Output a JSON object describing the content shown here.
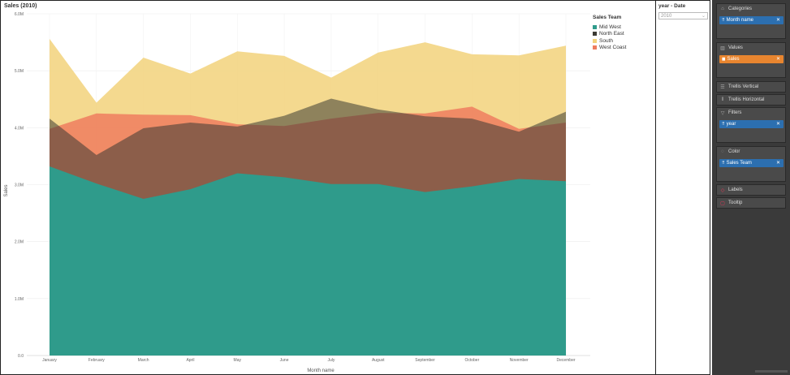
{
  "chart_title": "Sales (2010)",
  "chart_data": {
    "type": "area",
    "categories": [
      "January",
      "February",
      "March",
      "April",
      "May",
      "June",
      "July",
      "August",
      "September",
      "October",
      "November",
      "December"
    ],
    "series": [
      {
        "name": "Mid West",
        "values": [
          3320000,
          3020000,
          2750000,
          2920000,
          3200000,
          3130000,
          3010000,
          3010000,
          2870000,
          2970000,
          3100000,
          3060000
        ]
      },
      {
        "name": "North East",
        "values": [
          4160000,
          3520000,
          3990000,
          4090000,
          4020000,
          4210000,
          4510000,
          4320000,
          4200000,
          4160000,
          3930000,
          4280000
        ]
      },
      {
        "name": "South",
        "values": [
          5560000,
          4440000,
          5230000,
          4950000,
          5340000,
          5260000,
          4880000,
          5320000,
          5500000,
          5290000,
          5270000,
          5440000
        ]
      },
      {
        "name": "West Coast",
        "values": [
          3980000,
          4250000,
          4230000,
          4220000,
          4060000,
          4030000,
          4160000,
          4260000,
          4250000,
          4370000,
          3980000,
          4090000
        ]
      }
    ],
    "xlabel": "Month name",
    "ylabel": "Sales",
    "ylim": [
      0,
      6000000
    ],
    "yticks": [
      "0.0",
      "1.0M",
      "2.0M",
      "3.0M",
      "4.0M",
      "5.0M",
      "6.0M"
    ],
    "grid": true,
    "legend_title": "Sales Team",
    "legend_position": "right"
  },
  "colors": {
    "Mid West": "#2f9b8b",
    "North East": "#3b3a33",
    "South": "#f2d27b",
    "West Coast": "#ee7c5f"
  },
  "slicer": {
    "title": "year - Date",
    "value": "2010"
  },
  "fields_panel": {
    "categories": {
      "label": "Categories",
      "field": "Month name",
      "icon": "categories-icon"
    },
    "values": {
      "label": "Values",
      "field": "Sales",
      "icon": "bar-chart-icon"
    },
    "trellis_vertical": {
      "label": "Trellis Vertical"
    },
    "trellis_horizontal": {
      "label": "Trellis Horizontal"
    },
    "filters": {
      "label": "Filters",
      "field": "year",
      "icon": "filter-icon"
    },
    "color": {
      "label": "Color",
      "field": "Sales Team",
      "icon": "palette-icon"
    },
    "labels": {
      "label": "Labels",
      "icon": "tag-icon"
    },
    "tooltip": {
      "label": "Tooltip",
      "icon": "tooltip-icon"
    }
  }
}
